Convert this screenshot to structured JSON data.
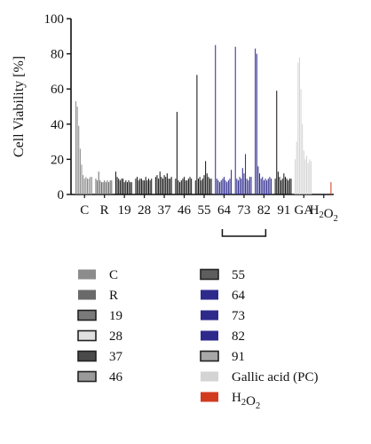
{
  "chart_data": {
    "type": "bar",
    "ylabel": "Cell Viability [%]",
    "ylim": [
      0,
      100
    ],
    "yticks": [
      0,
      20,
      40,
      60,
      80,
      100
    ],
    "grid": false,
    "bracket": {
      "from": "64",
      "to": "82"
    },
    "groups": [
      {
        "label": "C",
        "series": "C",
        "values": [
          53,
          50,
          39,
          26,
          17,
          11,
          9,
          10,
          9,
          9,
          10,
          10
        ]
      },
      {
        "label": "R",
        "series": "R",
        "values": [
          9,
          8,
          13,
          8,
          7,
          7,
          8,
          7,
          8,
          7,
          8,
          8
        ]
      },
      {
        "label": "19",
        "series": "19",
        "values": [
          13,
          10,
          9,
          8,
          9,
          9,
          7,
          8,
          7,
          8,
          7,
          7
        ]
      },
      {
        "label": "28",
        "series": "28",
        "values": [
          9,
          10,
          8,
          9,
          9,
          8,
          8,
          10,
          8,
          9,
          8,
          9
        ]
      },
      {
        "label": "37",
        "series": "37",
        "values": [
          10,
          11,
          9,
          13,
          10,
          9,
          11,
          10,
          12,
          9,
          9,
          10
        ]
      },
      {
        "label": "46",
        "series": "46",
        "values": [
          9,
          47,
          8,
          7,
          8,
          9,
          10,
          8,
          8,
          9,
          10,
          9
        ]
      },
      {
        "label": "55",
        "series": "55",
        "values": [
          8,
          68,
          9,
          10,
          8,
          9,
          11,
          19,
          12,
          10,
          9,
          9
        ]
      },
      {
        "label": "64",
        "series": "64",
        "values": [
          85,
          9,
          8,
          7,
          8,
          9,
          10,
          8,
          7,
          8,
          9,
          14
        ]
      },
      {
        "label": "73",
        "series": "73",
        "values": [
          84,
          9,
          8,
          10,
          9,
          15,
          12,
          23,
          9,
          8,
          10,
          10
        ]
      },
      {
        "label": "82",
        "series": "82",
        "values": [
          83,
          80,
          16,
          12,
          9,
          10,
          8,
          9,
          8,
          9,
          10,
          9
        ]
      },
      {
        "label": "91",
        "series": "91",
        "values": [
          9,
          59,
          13,
          10,
          8,
          9,
          12,
          10,
          9,
          8,
          9,
          9
        ]
      },
      {
        "label": "GA",
        "series": "Gallic acid (PC)",
        "values": [
          20,
          30,
          75,
          78,
          60,
          40,
          25,
          20,
          22,
          18,
          20,
          19
        ]
      },
      {
        "label": "H₂O₂",
        "series": "H₂O₂",
        "values": [
          0,
          0,
          0,
          0,
          0,
          0,
          0,
          0,
          0,
          0,
          0,
          7
        ]
      }
    ],
    "legend": [
      {
        "name": "C",
        "color": "#8c8c8c",
        "style": "solid"
      },
      {
        "name": "R",
        "color": "#6a6a6a",
        "style": "solid"
      },
      {
        "name": "19",
        "color": "#7a7a7a",
        "style": "boxed"
      },
      {
        "name": "28",
        "color": "#e0e0e0",
        "style": "boxed"
      },
      {
        "name": "37",
        "color": "#4a4a4a",
        "style": "boxed"
      },
      {
        "name": "46",
        "color": "#9a9a9a",
        "style": "boxed"
      },
      {
        "name": "55",
        "color": "#5e5e5e",
        "style": "boxed"
      },
      {
        "name": "64",
        "color": "#2e2a8c",
        "style": "solid"
      },
      {
        "name": "73",
        "color": "#2e2a8c",
        "style": "solid"
      },
      {
        "name": "82",
        "color": "#2e2a8c",
        "style": "solid"
      },
      {
        "name": "91",
        "color": "#a8a8a8",
        "style": "boxed"
      },
      {
        "name": "Gallic acid (PC)",
        "color": "#d4d4d4",
        "style": "solid"
      },
      {
        "name": "H₂O₂",
        "color": "#d23a20",
        "style": "solid"
      }
    ],
    "bar_colors": {
      "C": "#8c8c8c",
      "R": "#6a6a6a",
      "19": "#111111",
      "28": "#111111",
      "37": "#111111",
      "46": "#111111",
      "55": "#111111",
      "64": "#2e2a8c",
      "73": "#2e2a8c",
      "82": "#2e2a8c",
      "91": "#111111",
      "Gallic acid (PC)": "#d4d4d4",
      "H₂O₂": "#d23a20"
    }
  }
}
